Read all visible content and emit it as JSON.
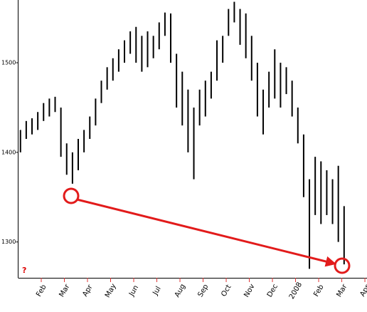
{
  "chart_data": {
    "type": "hilo",
    "color": "#000000",
    "x": [
      0.1,
      0.35,
      0.6,
      0.85,
      1.1,
      1.35,
      1.6,
      1.85,
      2.1,
      2.35,
      2.6,
      2.85,
      3.1,
      3.35,
      3.6,
      3.85,
      4.1,
      4.35,
      4.6,
      4.85,
      5.1,
      5.35,
      5.6,
      5.85,
      6.1,
      6.35,
      6.6,
      6.85,
      7.1,
      7.35,
      7.6,
      7.85,
      8.1,
      8.35,
      8.6,
      8.85,
      9.1,
      9.35,
      9.6,
      9.85,
      10.1,
      10.35,
      10.6,
      10.85,
      11.1,
      11.35,
      11.6,
      11.85,
      12.1,
      12.35,
      12.6,
      12.85,
      13.1,
      13.35,
      13.6,
      13.85,
      14.1
    ],
    "low": [
      1400,
      1415,
      1420,
      1425,
      1435,
      1440,
      1445,
      1395,
      1375,
      1365,
      1380,
      1400,
      1415,
      1430,
      1455,
      1470,
      1480,
      1490,
      1500,
      1510,
      1500,
      1490,
      1495,
      1505,
      1515,
      1530,
      1500,
      1450,
      1430,
      1400,
      1370,
      1430,
      1440,
      1460,
      1480,
      1500,
      1530,
      1545,
      1520,
      1505,
      1480,
      1440,
      1420,
      1450,
      1460,
      1450,
      1465,
      1440,
      1410,
      1350,
      1270,
      1330,
      1320,
      1330,
      1320,
      1300,
      1275
    ],
    "high": [
      1425,
      1435,
      1438,
      1445,
      1455,
      1460,
      1462,
      1450,
      1410,
      1400,
      1415,
      1425,
      1440,
      1460,
      1480,
      1495,
      1505,
      1515,
      1525,
      1535,
      1540,
      1530,
      1535,
      1530,
      1545,
      1556,
      1555,
      1510,
      1490,
      1470,
      1450,
      1470,
      1480,
      1490,
      1525,
      1530,
      1560,
      1568,
      1560,
      1555,
      1530,
      1500,
      1470,
      1490,
      1515,
      1500,
      1495,
      1480,
      1450,
      1420,
      1370,
      1395,
      1390,
      1380,
      1370,
      1385,
      1340
    ],
    "xlim": [
      0,
      14.9
    ],
    "ylim": [
      1260,
      1570
    ],
    "yticks": [
      1300,
      1400,
      1500
    ],
    "xticks": [
      {
        "value": 1,
        "label": "Feb"
      },
      {
        "value": 2,
        "label": "Mar"
      },
      {
        "value": 3,
        "label": "Apr"
      },
      {
        "value": 4,
        "label": "May"
      },
      {
        "value": 5,
        "label": "Jun"
      },
      {
        "value": 6,
        "label": "Jul"
      },
      {
        "value": 7,
        "label": "Aug"
      },
      {
        "value": 8,
        "label": "Sep"
      },
      {
        "value": 9,
        "label": "Oct"
      },
      {
        "value": 10,
        "label": "Nov"
      },
      {
        "value": 11,
        "label": "Dec"
      },
      {
        "value": 12,
        "label": "2008"
      },
      {
        "value": 13,
        "label": "Feb"
      },
      {
        "value": 14,
        "label": "Mar"
      },
      {
        "value": 15,
        "label": "Apr"
      }
    ],
    "annotation": "?"
  }
}
